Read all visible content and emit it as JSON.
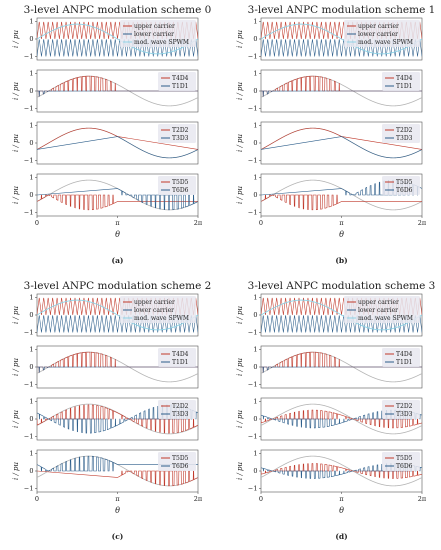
{
  "chart_data": [
    {
      "type": "line",
      "title": "3-level ANPC modulation scheme 0",
      "sub_label": "(a)",
      "xlabel": "θ",
      "ylabel": "i / pu",
      "xlim": [
        0,
        6.2832
      ],
      "x_ticks": [
        {
          "value": 0,
          "label": "0"
        },
        {
          "value": 3.1416,
          "label": "π"
        },
        {
          "value": 6.2832,
          "label": "2π"
        }
      ],
      "y_ticks": [
        -1,
        0,
        1
      ],
      "scheme": 0,
      "modulation": {
        "carriers": 36,
        "mod_amplitude": 0.85,
        "current_amplitude": 0.85,
        "phase_lag": 0.45
      },
      "subplots": [
        {
          "ylim": [
            -1.2,
            1.2
          ],
          "legend": [
            "upper carrier",
            "lower carrier",
            "mod. wave SPWM"
          ]
        },
        {
          "ylim": [
            -1.2,
            1.2
          ],
          "legend": [
            "T4D4",
            "T1D1"
          ]
        },
        {
          "ylim": [
            -1.2,
            1.2
          ],
          "legend": [
            "T2D2",
            "T3D3"
          ]
        },
        {
          "ylim": [
            -1.2,
            1.2
          ],
          "legend": [
            "T5D5",
            "T6D6"
          ]
        }
      ]
    },
    {
      "type": "line",
      "title": "3-level ANPC modulation scheme 1",
      "sub_label": "(b)",
      "xlabel": "θ",
      "ylabel": "i / pu",
      "xlim": [
        0,
        6.2832
      ],
      "x_ticks": [
        {
          "value": 0,
          "label": "0"
        },
        {
          "value": 3.1416,
          "label": "π"
        },
        {
          "value": 6.2832,
          "label": "2π"
        }
      ],
      "y_ticks": [
        -1,
        0,
        1
      ],
      "scheme": 1,
      "modulation": {
        "carriers": 36,
        "mod_amplitude": 0.85,
        "current_amplitude": 0.85,
        "phase_lag": 0.45
      },
      "subplots": [
        {
          "ylim": [
            -1.2,
            1.2
          ],
          "legend": [
            "upper carrier",
            "lower carrier",
            "mod. wave SPWM"
          ]
        },
        {
          "ylim": [
            -1.2,
            1.2
          ],
          "legend": [
            "T4D4",
            "T1D1"
          ]
        },
        {
          "ylim": [
            -1.2,
            1.2
          ],
          "legend": [
            "T2D2",
            "T3D3"
          ]
        },
        {
          "ylim": [
            -1.2,
            1.2
          ],
          "legend": [
            "T5D5",
            "T6D6"
          ]
        }
      ]
    },
    {
      "type": "line",
      "title": "3-level ANPC modulation scheme 2",
      "sub_label": "(c)",
      "xlabel": "θ",
      "ylabel": "i / pu",
      "xlim": [
        0,
        6.2832
      ],
      "x_ticks": [
        {
          "value": 0,
          "label": "0"
        },
        {
          "value": 3.1416,
          "label": "π"
        },
        {
          "value": 6.2832,
          "label": "2π"
        }
      ],
      "y_ticks": [
        -1,
        0,
        1
      ],
      "scheme": 2,
      "modulation": {
        "carriers": 36,
        "mod_amplitude": 0.85,
        "current_amplitude": 0.85,
        "phase_lag": 0.45
      },
      "subplots": [
        {
          "ylim": [
            -1.2,
            1.2
          ],
          "legend": [
            "upper carrier",
            "lower carrier",
            "mod. wave SPWM"
          ]
        },
        {
          "ylim": [
            -1.2,
            1.2
          ],
          "legend": [
            "T4D4",
            "T1D1"
          ]
        },
        {
          "ylim": [
            -1.2,
            1.2
          ],
          "legend": [
            "T2D2",
            "T3D3"
          ]
        },
        {
          "ylim": [
            -1.2,
            1.2
          ],
          "legend": [
            "T5D5",
            "T6D6"
          ]
        }
      ]
    },
    {
      "type": "line",
      "title": "3-level ANPC modulation scheme 3",
      "sub_label": "(d)",
      "xlabel": "θ",
      "ylabel": "i / pu",
      "xlim": [
        0,
        6.2832
      ],
      "x_ticks": [
        {
          "value": 0,
          "label": "0"
        },
        {
          "value": 3.1416,
          "label": "π"
        },
        {
          "value": 6.2832,
          "label": "2π"
        }
      ],
      "y_ticks": [
        -1,
        0,
        1
      ],
      "scheme": 3,
      "modulation": {
        "carriers": 36,
        "mod_amplitude": 0.85,
        "current_amplitude": 0.85,
        "phase_lag": 0.45
      },
      "subplots": [
        {
          "ylim": [
            -1.2,
            1.2
          ],
          "legend": [
            "upper carrier",
            "lower carrier",
            "mod. wave SPWM"
          ]
        },
        {
          "ylim": [
            -1.2,
            1.2
          ],
          "legend": [
            "T4D4",
            "T1D1"
          ]
        },
        {
          "ylim": [
            -1.2,
            1.2
          ],
          "legend": [
            "T2D2",
            "T3D3"
          ]
        },
        {
          "ylim": [
            -1.2,
            1.2
          ],
          "legend": [
            "T5D5",
            "T6D6"
          ]
        }
      ]
    }
  ],
  "colors": {
    "red": "#c0392b",
    "blue": "#2c5d8a",
    "gray": "#b4b4b4",
    "pink": "#f2b4c8",
    "cyan": "#8fd3e6",
    "legend_bg": "#e8e8f0",
    "axis": "#555555"
  }
}
